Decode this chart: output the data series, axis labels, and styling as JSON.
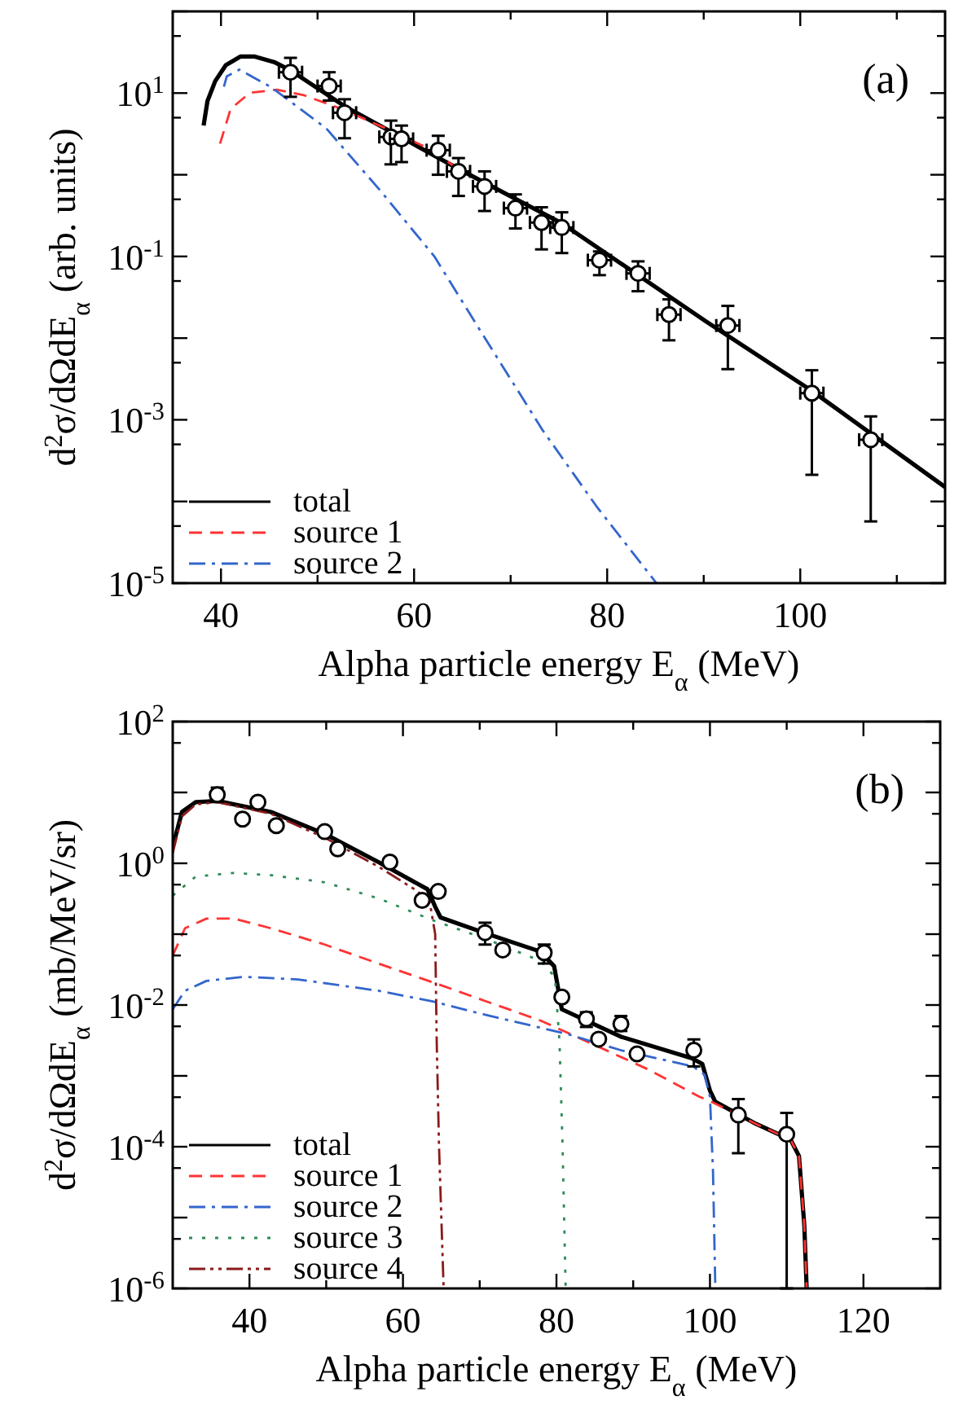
{
  "chart_data": [
    {
      "type": "line",
      "xlabel": "Alpha particle energy E$_{α}$ (MeV)",
      "ylabel": "d$^{2}$σ/dΩdE$_{α}$ (arb. units)",
      "log": "y",
      "legend": "bottom left",
      "xlim": [
        35,
        115
      ],
      "xticks": [
        40,
        {
          "value": 50,
          "label": null
        },
        60,
        {
          "value": 70,
          "label": null
        },
        80,
        {
          "value": 90,
          "label": null
        },
        100,
        {
          "value": 110,
          "label": null
        }
      ],
      "ylim": [
        1e-05,
        100
      ],
      "yticks": [
        {
          "value": 1e-05,
          "label": "10$^{-5}$"
        },
        {
          "value": 5e-05,
          "label": null
        },
        {
          "value": 0.0001,
          "label": null
        },
        {
          "value": 0.0005,
          "label": null
        },
        {
          "value": 0.001,
          "label": "10$^{-3}$"
        },
        {
          "value": 0.005,
          "label": null
        },
        {
          "value": 0.01,
          "label": null
        },
        {
          "value": 0.05,
          "label": null
        },
        {
          "value": 0.1,
          "label": "10$^{-1}$"
        },
        {
          "value": 0.5,
          "label": null
        },
        {
          "value": 1,
          "label": null
        },
        {
          "value": 5,
          "label": null
        },
        {
          "value": 10,
          "label": "10$^{1}$"
        },
        {
          "value": 50,
          "label": null
        },
        {
          "value": 100,
          "label": null
        }
      ],
      "annotations": [
        "(a)"
      ],
      "series": [
        {
          "name": "total",
          "color": "#000000",
          "line_style": "solid",
          "x": [
            38.2,
            38.6,
            39.4,
            40.5,
            42,
            43.5,
            45.5,
            47.2,
            52.8,
            64.6,
            75.3,
            90.2,
            101.2,
            115
          ],
          "values": [
            4,
            8,
            14,
            22,
            28,
            28,
            24,
            19,
            6.9,
            1.18,
            0.255,
            0.0161,
            0.00226,
            0.00015
          ]
        },
        {
          "name": "source 1",
          "color": "#ff3333",
          "line_style": "dashed",
          "x": [
            39.9,
            41,
            43,
            45.8,
            48.6,
            52.5,
            57.6,
            62.1,
            64.6
          ],
          "values": [
            2.4,
            6.4,
            10.1,
            11,
            9.4,
            6.4,
            3.47,
            1.94,
            1.15
          ]
        },
        {
          "name": "source 2",
          "color": "#3366cc",
          "line_style": "dashdot",
          "x": [
            40.3,
            40.6,
            41.9,
            45.2,
            50.9,
            56.5,
            62.1,
            66.6,
            73.3,
            78.9,
            85.1
          ],
          "values": [
            12,
            16,
            19.4,
            11.8,
            3.7,
            0.64,
            0.1,
            0.0138,
            0.00075,
            8.7e-05,
            1e-05
          ]
        },
        {
          "type": "scatter",
          "marker": "circle",
          "color": "#000000",
          "x": [
            47.2,
            51.2,
            52.8,
            57.6,
            58.7,
            62.5,
            64.6,
            67.3,
            70.5,
            73.2,
            75.3,
            79.2,
            83.2,
            86.4,
            92.5,
            101.2,
            107.3
          ],
          "values": [
            18,
            12.2,
            5.75,
            2.9,
            2.75,
            2.0,
            1.1,
            0.72,
            0.39,
            0.26,
            0.226,
            0.09,
            0.062,
            0.0194,
            0.01426,
            0.00212,
            0.00057
          ],
          "errors": [
            [
              9,
              27
            ],
            [
              8.1,
              18
            ],
            [
              2.8,
              8.4
            ],
            [
              1.34,
              4.6
            ],
            [
              1.43,
              4.0
            ],
            [
              1.0,
              3.0
            ],
            [
              0.55,
              1.6
            ],
            [
              0.36,
              1.1
            ],
            [
              0.22,
              0.575
            ],
            [
              0.122,
              0.4
            ],
            [
              0.11,
              0.347
            ],
            [
              0.059,
              0.115
            ],
            [
              0.0375,
              0.087
            ],
            [
              0.0094,
              0.0298
            ],
            [
              0.00417,
              0.0248
            ],
            [
              0.000212,
              0.00404
            ],
            [
              5.7e-05,
              0.0011
            ]
          ],
          "xerrors": [
            1.2,
            1.2,
            1.2,
            1.2,
            1.2,
            1.2,
            1.2,
            1.2,
            1.2,
            1.2,
            1.2,
            1.2,
            1.2,
            1.2,
            1.2,
            1.2,
            1.2
          ]
        }
      ]
    },
    {
      "type": "line",
      "xlabel": "Alpha particle energy E$_{α}$ (MeV)",
      "ylabel": "d$^{2}$σ/dΩdE$_{α}$ (mb/MeV/sr)",
      "log": "y",
      "legend": "bottom left",
      "xlim": [
        30,
        130
      ],
      "xticks": [
        40,
        {
          "value": 50,
          "label": null
        },
        60,
        {
          "value": 70,
          "label": null
        },
        80,
        {
          "value": 90,
          "label": null
        },
        100,
        {
          "value": 110,
          "label": null
        },
        120
      ],
      "ylim": [
        1e-06,
        100
      ],
      "yticks": [
        {
          "value": 1e-06,
          "label": "10$^{-6}$"
        },
        {
          "value": 5e-06,
          "label": null
        },
        {
          "value": 1e-05,
          "label": null
        },
        {
          "value": 5e-05,
          "label": null
        },
        {
          "value": 0.0001,
          "label": "10$^{-4}$"
        },
        {
          "value": 0.0005,
          "label": null
        },
        {
          "value": 0.001,
          "label": null
        },
        {
          "value": 0.005,
          "label": null
        },
        {
          "value": 0.01,
          "label": "10$^{-2}$"
        },
        {
          "value": 0.05,
          "label": null
        },
        {
          "value": 0.1,
          "label": null
        },
        {
          "value": 0.5,
          "label": null
        },
        {
          "value": 1,
          "label": "10$^{0}$"
        },
        {
          "value": 5,
          "label": null
        },
        {
          "value": 10,
          "label": null
        },
        {
          "value": 50,
          "label": null
        },
        {
          "value": 100,
          "label": "10$^{2}$"
        }
      ],
      "annotations": [
        "(b)"
      ],
      "series": [
        {
          "name": "total",
          "color": "#000000",
          "line_style": "solid",
          "x": [
            30,
            31.2,
            33,
            35.8,
            42.8,
            49.8,
            56.8,
            63.2,
            64.2,
            64.9,
            70.9,
            77.9,
            79.7,
            80.7,
            88.4,
            97.6,
            99,
            100,
            100.7,
            106,
            110.5,
            111.6,
            112.3,
            112.6
          ],
          "values": [
            1.7,
            5.3,
            7.3,
            7.6,
            5.3,
            2.6,
            1.04,
            0.43,
            0.244,
            0.172,
            0.1016,
            0.0568,
            0.0353,
            0.0087,
            0.00357,
            0.00178,
            0.00148,
            0.00062,
            0.00043,
            0.00021,
            0.000126,
            7.4e-05,
            7.6e-06,
            1e-06
          ]
        },
        {
          "name": "source 1",
          "color": "#ff3333",
          "line_style": "dashed",
          "x": [
            30,
            31.6,
            34.4,
            37.9,
            42.8,
            49.8,
            56.8,
            63.9,
            70.9,
            77.9,
            84.9,
            91.9,
            98.6,
            100.4,
            106,
            110.5,
            111.6,
            112.3,
            112.6
          ],
          "values": [
            0.05,
            0.121,
            0.166,
            0.166,
            0.121,
            0.0713,
            0.0385,
            0.0209,
            0.0112,
            0.00605,
            0.00275,
            0.00124,
            0.00051,
            0.00042,
            0.00021,
            0.000126,
            7.4e-05,
            7.6e-06,
            1e-06
          ]
        },
        {
          "name": "source 2",
          "color": "#3366cc",
          "line_style": "dashdot",
          "x": [
            30,
            31.6,
            34.4,
            39.3,
            46.3,
            56.8,
            63.9,
            70.9,
            81.4,
            88.4,
            97.8,
            99.3,
            100,
            100.4,
            100.7
          ],
          "values": [
            0.0087,
            0.0159,
            0.0219,
            0.025,
            0.023,
            0.0159,
            0.0112,
            0.0072,
            0.0039,
            0.0023,
            0.00136,
            0.00104,
            0.00051,
            4.4e-05,
            1e-06
          ]
        },
        {
          "name": "source 3",
          "color": "#2e8b57",
          "line_style": "dotted",
          "x": [
            30,
            33,
            37.9,
            42.8,
            49.8,
            56.8,
            63.9,
            70.9,
            77.9,
            79.8,
            80.4,
            80.8,
            81.2
          ],
          "values": [
            0.35,
            0.65,
            0.73,
            0.68,
            0.54,
            0.32,
            0.157,
            0.085,
            0.042,
            0.025,
            0.003,
            0.0001,
            1e-06
          ]
        },
        {
          "name": "source 4",
          "color": "#8b1a1a",
          "line_style": "dashdotdot",
          "x": [
            30,
            31.2,
            33,
            35.8,
            42.8,
            49.8,
            56.8,
            61.8,
            63.5,
            64.2,
            64.4,
            64.7,
            65.3
          ],
          "values": [
            1.4,
            4.6,
            6.8,
            7.3,
            5.0,
            2.3,
            0.9,
            0.41,
            0.28,
            0.1,
            0.003,
            0.0001,
            1e-06
          ]
        },
        {
          "type": "scatter",
          "marker": "circle",
          "color": "#000000",
          "x": [
            35.8,
            39.1,
            41.1,
            43.5,
            49.8,
            51.5,
            58.3,
            62.5,
            64.6,
            70.7,
            73.0,
            78.4,
            80.7,
            83.9,
            85.5,
            88.4,
            90.5,
            97.9,
            103.7,
            110.0
          ],
          "values": [
            9.3,
            4.2,
            7.3,
            3.4,
            2.8,
            1.6,
            1.04,
            0.3,
            0.4,
            0.105,
            0.0598,
            0.0548,
            0.01294,
            0.00638,
            0.0033,
            0.0054,
            0.00204,
            0.0023,
            0.00028,
            0.00015
          ],
          "errors": [
            [
              7.4,
              11.7
            ],
            null,
            null,
            null,
            null,
            null,
            null,
            null,
            null,
            [
              0.0713,
              0.145
            ],
            null,
            [
              0.0385,
              0.0713
            ],
            null,
            [
              0.0049,
              0.0079
            ],
            null,
            [
              0.0043,
              0.007
            ],
            null,
            [
              0.00136,
              0.00327
            ],
            [
              8.1e-05,
              0.00047
            ],
            [
              1e-06,
              0.0003
            ]
          ]
        }
      ]
    }
  ]
}
